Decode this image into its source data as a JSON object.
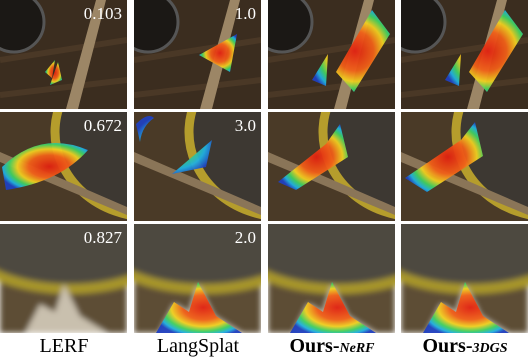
{
  "columns": [
    {
      "name": "LERF"
    },
    {
      "name": "LangSplat"
    },
    {
      "name": "Ours-",
      "variant": "NeRF"
    },
    {
      "name": "Ours-",
      "variant": "3DGS"
    }
  ],
  "scores": [
    [
      "0.103",
      "1.0"
    ],
    [
      "0.672",
      "3.0"
    ],
    [
      "0.827",
      "2.0"
    ]
  ]
}
